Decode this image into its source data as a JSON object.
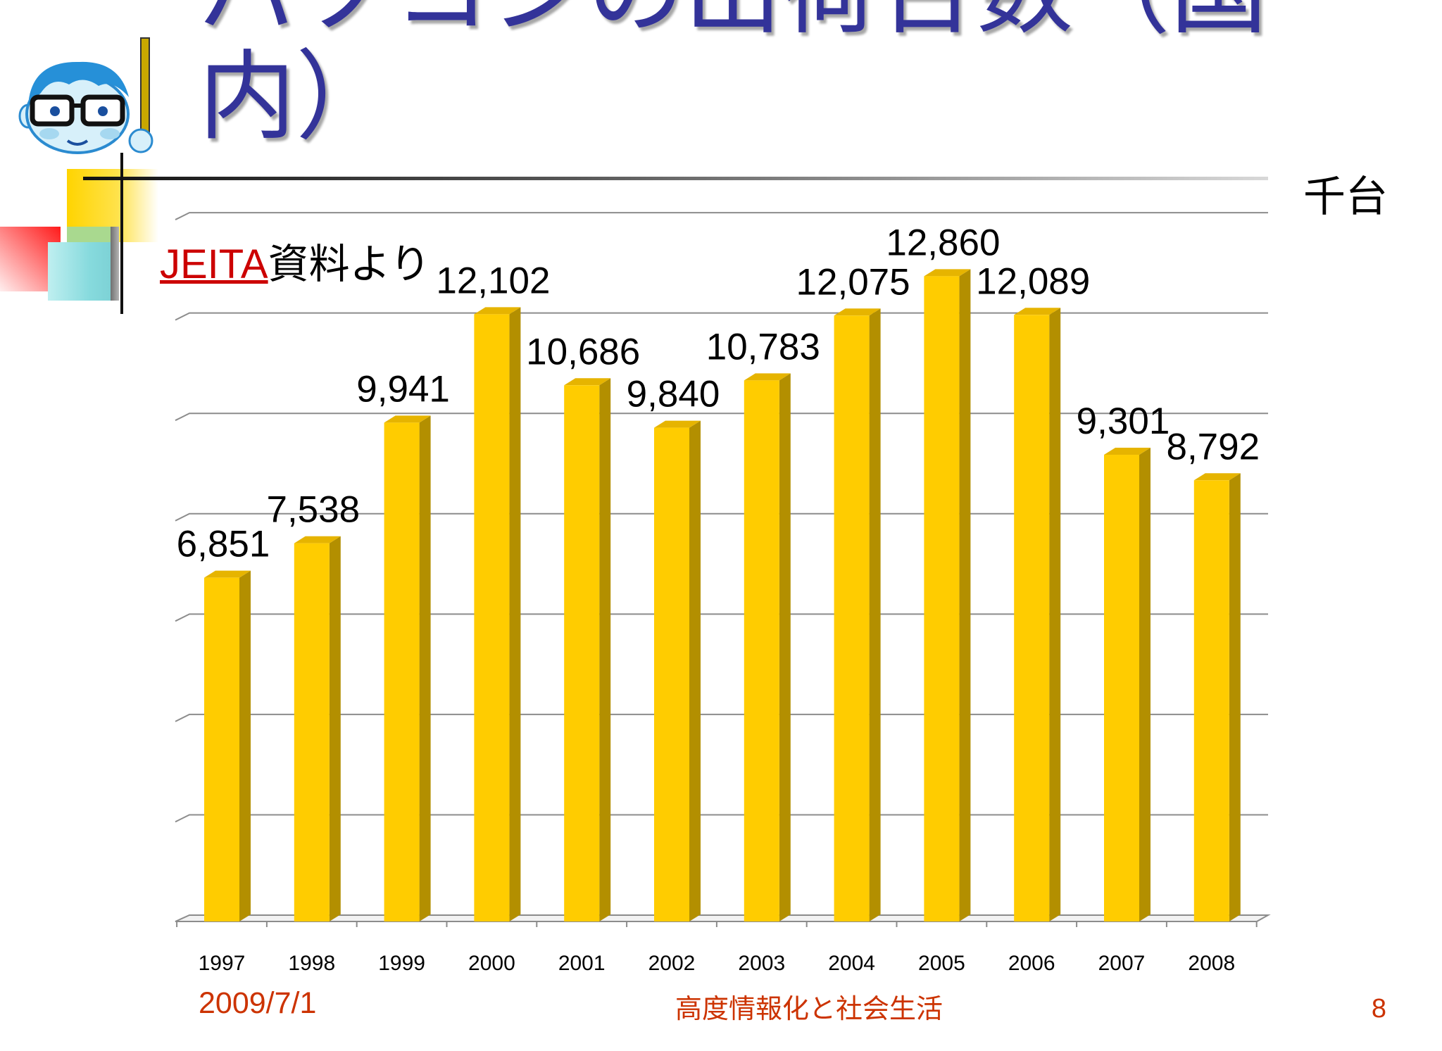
{
  "slide": {
    "title": "パソコンの出荷台数（国内）",
    "source_link": "JEITA",
    "source_text": "資料より",
    "date": "2009/7/1",
    "footer_title": "高度情報化と社会生活",
    "page_number": "8"
  },
  "colors": {
    "title": "#333399",
    "footer": "#CC3300",
    "link": "#CC0000",
    "bar_front": "#FFCC00",
    "bar_side": "#B38F00",
    "bar_top": "#E6B400",
    "grid": "#8C8C8C",
    "floor": "#F2F2F2"
  },
  "icons": {
    "mascot": "teacher-with-glasses-and-pointer"
  },
  "chart_data": {
    "type": "bar",
    "style": "3d-column",
    "unit": "千台",
    "categories": [
      "1997",
      "1998",
      "1999",
      "2000",
      "2001",
      "2002",
      "2003",
      "2004",
      "2005",
      "2006",
      "2007",
      "2008"
    ],
    "values": [
      6851,
      7538,
      9941,
      12102,
      10686,
      9840,
      10783,
      12075,
      12860,
      12089,
      9301,
      8792
    ],
    "data_labels": [
      "6,851",
      "7,538",
      "9,941",
      "12,102",
      "10,686",
      "9,840",
      "10,783",
      "12,075",
      "12,860",
      "12,089",
      "9,301",
      "8,792"
    ],
    "ylim": [
      0,
      14000
    ],
    "y_grid_step": 2000,
    "grid": true,
    "legend": "none"
  }
}
